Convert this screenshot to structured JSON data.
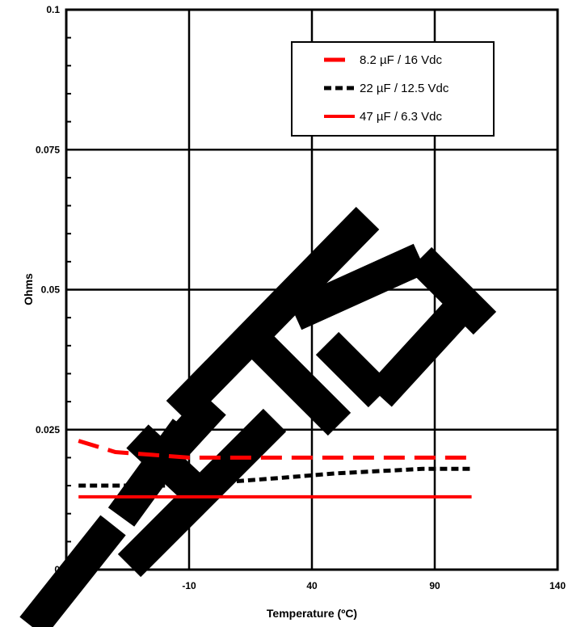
{
  "chart_data": {
    "type": "line",
    "title": "",
    "xlabel": "Temperature (ºC)",
    "ylabel": "Ohms",
    "xlim": [
      -60,
      140
    ],
    "ylim": [
      0,
      0.1
    ],
    "x_ticks": [
      "-60",
      "-10",
      "40",
      "90",
      "140"
    ],
    "y_ticks": [
      "0",
      "0.025",
      "0.05",
      "0.075",
      "0.1"
    ],
    "grid": true,
    "legend_position": "top-right",
    "series": [
      {
        "name": "8.2 µF / 16 Vdc",
        "style": "dashed",
        "color": "#ff0000",
        "x": [
          -55,
          -40,
          -25,
          -10,
          0,
          25,
          50,
          85,
          105
        ],
        "y": [
          0.023,
          0.021,
          0.0205,
          0.02,
          0.02,
          0.02,
          0.02,
          0.02,
          0.02
        ]
      },
      {
        "name": "22 µF / 12.5 Vdc",
        "style": "dotted",
        "color": "#000000",
        "x": [
          -55,
          -40,
          -25,
          -10,
          0,
          25,
          50,
          85,
          105
        ],
        "y": [
          0.015,
          0.015,
          0.015,
          0.015,
          0.0155,
          0.0163,
          0.0172,
          0.018,
          0.018
        ]
      },
      {
        "name": "47 µF / 6.3 Vdc",
        "style": "solid",
        "color": "#ff0000",
        "x": [
          -55,
          105
        ],
        "y": [
          0.013,
          0.013
        ]
      }
    ]
  },
  "watermark": "OBSOLETE"
}
